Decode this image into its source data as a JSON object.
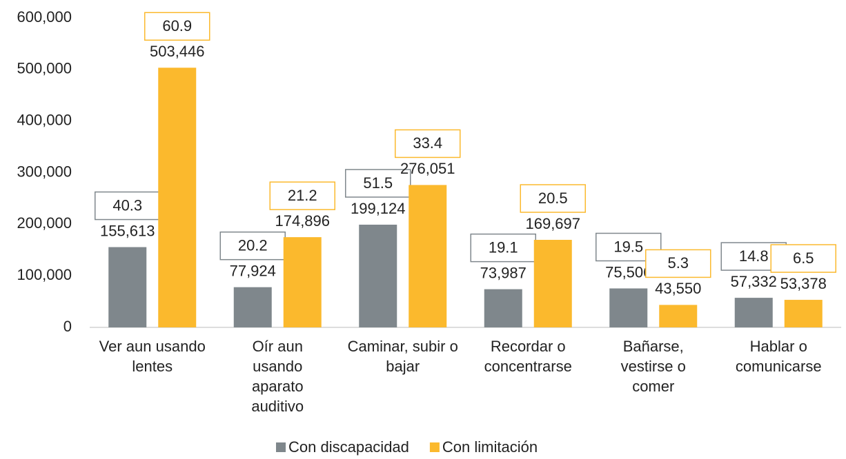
{
  "chart_data": {
    "type": "bar",
    "categories": [
      "Ver aun usando lentes",
      "Oír aun usando aparato auditivo",
      "Caminar, subir o bajar",
      "Recordar o concentrarse",
      "Bañarse, vestirse o comer",
      "Hablar o comunicarse"
    ],
    "series": [
      {
        "name": "Con discapacidad",
        "color": "#7f878c",
        "values": [
          155613,
          77924,
          199124,
          73987,
          75506,
          57332
        ],
        "value_labels": [
          "155,613",
          "77,924",
          "199,124",
          "73,987",
          "75,506",
          "57,332"
        ],
        "percentages": [
          40.3,
          20.2,
          51.5,
          19.1,
          19.5,
          14.8
        ]
      },
      {
        "name": "Con limitación",
        "color": "#fbb92d",
        "values": [
          503446,
          174896,
          276051,
          169697,
          43550,
          53378
        ],
        "value_labels": [
          "503,446",
          "174,896",
          "276,051",
          "169,697",
          "43,550",
          "53,378"
        ],
        "percentages": [
          60.9,
          21.2,
          33.4,
          20.5,
          5.3,
          6.5
        ]
      }
    ],
    "ylim": [
      0,
      600000
    ],
    "yticks": [
      0,
      {
        "value": 100000,
        "label": "100,000"
      },
      {
        "value": 200000,
        "label": "200,000"
      },
      {
        "value": 300000,
        "label": "300,000"
      },
      {
        "value": 400000,
        "label": "400,000"
      },
      {
        "value": 500000,
        "label": "500,000"
      },
      {
        "value": 600000,
        "label": "600,000"
      }
    ],
    "grid": false,
    "legend": "bottom"
  }
}
